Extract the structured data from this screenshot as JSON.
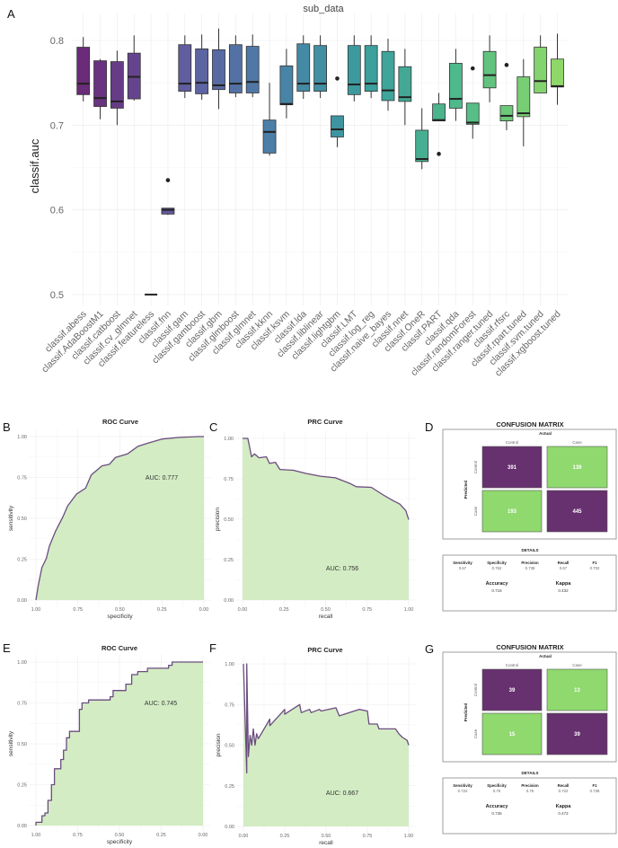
{
  "panel_letters": [
    "A",
    "B",
    "C",
    "D",
    "E",
    "F",
    "G"
  ],
  "colors": {
    "curve_line": "#6b4c80",
    "curve_fill": "#d3ecc4",
    "cm_purple": "#67306f",
    "cm_green": "#8fd96e",
    "box_start": "#6a2b79",
    "box_end": "#8ed86a"
  },
  "chart_data": [
    {
      "type": "box",
      "title": "sub_data",
      "xlabel": "",
      "ylabel": "classif.auc",
      "ylim": [
        0.487,
        0.832
      ],
      "yticks": [
        "0.5",
        "0.6",
        "0.7",
        "0.8"
      ],
      "grid": true,
      "series": [
        {
          "name": "classif.abess",
          "min": 0.728,
          "q1": 0.736,
          "median": 0.749,
          "q3": 0.792,
          "max": 0.804,
          "outliers": []
        },
        {
          "name": "classif.AdaBoostM1",
          "min": 0.707,
          "q1": 0.722,
          "median": 0.732,
          "q3": 0.776,
          "max": 0.778,
          "outliers": []
        },
        {
          "name": "classif.catboost",
          "min": 0.7,
          "q1": 0.72,
          "median": 0.728,
          "q3": 0.775,
          "max": 0.788,
          "outliers": []
        },
        {
          "name": "classif.cv_glmnet",
          "min": 0.729,
          "q1": 0.731,
          "median": 0.757,
          "q3": 0.785,
          "max": 0.806,
          "outliers": []
        },
        {
          "name": "classif.featureless",
          "min": 0.5,
          "q1": 0.5,
          "median": 0.5,
          "q3": 0.5,
          "max": 0.5,
          "outliers": []
        },
        {
          "name": "classif.fnn",
          "min": 0.594,
          "q1": 0.595,
          "median": 0.6,
          "q3": 0.602,
          "max": 0.602,
          "outliers": [
            0.635
          ]
        },
        {
          "name": "classif.gam",
          "min": 0.732,
          "q1": 0.74,
          "median": 0.749,
          "q3": 0.795,
          "max": 0.806,
          "outliers": []
        },
        {
          "name": "classif.gamboost",
          "min": 0.73,
          "q1": 0.737,
          "median": 0.75,
          "q3": 0.79,
          "max": 0.807,
          "outliers": []
        },
        {
          "name": "classif.gbm",
          "min": 0.719,
          "q1": 0.742,
          "median": 0.747,
          "q3": 0.789,
          "max": 0.814,
          "outliers": []
        },
        {
          "name": "classif.glmboost",
          "min": 0.733,
          "q1": 0.738,
          "median": 0.749,
          "q3": 0.795,
          "max": 0.806,
          "outliers": []
        },
        {
          "name": "classif.glmnet",
          "min": 0.733,
          "q1": 0.738,
          "median": 0.751,
          "q3": 0.793,
          "max": 0.807,
          "outliers": []
        },
        {
          "name": "classif.kknn",
          "min": 0.664,
          "q1": 0.667,
          "median": 0.692,
          "q3": 0.706,
          "max": 0.75,
          "outliers": []
        },
        {
          "name": "classif.ksvm",
          "min": 0.708,
          "q1": 0.724,
          "median": 0.725,
          "q3": 0.77,
          "max": 0.79,
          "outliers": []
        },
        {
          "name": "classif.lda",
          "min": 0.731,
          "q1": 0.74,
          "median": 0.749,
          "q3": 0.796,
          "max": 0.806,
          "outliers": []
        },
        {
          "name": "classif.liblinear",
          "min": 0.732,
          "q1": 0.74,
          "median": 0.749,
          "q3": 0.794,
          "max": 0.806,
          "outliers": []
        },
        {
          "name": "classif.lightgbm",
          "min": 0.674,
          "q1": 0.686,
          "median": 0.695,
          "q3": 0.711,
          "max": 0.711,
          "outliers": [
            0.755
          ]
        },
        {
          "name": "classif.LMT",
          "min": 0.728,
          "q1": 0.736,
          "median": 0.748,
          "q3": 0.794,
          "max": 0.806,
          "outliers": []
        },
        {
          "name": "classif.log_reg",
          "min": 0.732,
          "q1": 0.74,
          "median": 0.749,
          "q3": 0.794,
          "max": 0.806,
          "outliers": []
        },
        {
          "name": "classif.naive_bayes",
          "min": 0.717,
          "q1": 0.729,
          "median": 0.741,
          "q3": 0.787,
          "max": 0.802,
          "outliers": []
        },
        {
          "name": "classif.nnet",
          "min": 0.7,
          "q1": 0.728,
          "median": 0.733,
          "q3": 0.769,
          "max": 0.79,
          "outliers": []
        },
        {
          "name": "classif.OneR",
          "min": 0.648,
          "q1": 0.657,
          "median": 0.66,
          "q3": 0.694,
          "max": 0.72,
          "outliers": []
        },
        {
          "name": "classif.PART",
          "min": 0.705,
          "q1": 0.705,
          "median": 0.706,
          "q3": 0.725,
          "max": 0.738,
          "outliers": [
            0.666
          ]
        },
        {
          "name": "classif.qda",
          "min": 0.705,
          "q1": 0.72,
          "median": 0.731,
          "q3": 0.773,
          "max": 0.79,
          "outliers": []
        },
        {
          "name": "classif.randomForest",
          "min": 0.684,
          "q1": 0.701,
          "median": 0.703,
          "q3": 0.726,
          "max": 0.726,
          "outliers": [
            0.767
          ]
        },
        {
          "name": "classif.ranger.tuned",
          "min": 0.727,
          "q1": 0.744,
          "median": 0.759,
          "q3": 0.787,
          "max": 0.806,
          "outliers": []
        },
        {
          "name": "classif.rfsrc",
          "min": 0.694,
          "q1": 0.705,
          "median": 0.711,
          "q3": 0.723,
          "max": 0.723,
          "outliers": [
            0.771
          ]
        },
        {
          "name": "classif.rpart.tuned",
          "min": 0.675,
          "q1": 0.71,
          "median": 0.714,
          "q3": 0.757,
          "max": 0.778,
          "outliers": []
        },
        {
          "name": "classif.svm.tuned",
          "min": 0.738,
          "q1": 0.738,
          "median": 0.752,
          "q3": 0.792,
          "max": 0.806,
          "outliers": []
        },
        {
          "name": "classif.xgboost.tuned",
          "min": 0.724,
          "q1": 0.745,
          "median": 0.746,
          "q3": 0.778,
          "max": 0.808,
          "outliers": []
        }
      ]
    },
    {
      "type": "area",
      "panel": "B",
      "title": "ROC Curve",
      "xlabel": "specificity",
      "ylabel": "sensitivity",
      "xlim": [
        1,
        0
      ],
      "ylim": [
        0,
        1
      ],
      "xticks": [
        "1.00",
        "0.75",
        "0.50",
        "0.25",
        "0.00"
      ],
      "yticks": [
        "0.00",
        "0.25",
        "0.50",
        "0.75",
        "1.00"
      ],
      "annotation": "AUC: 0.777",
      "points": [
        [
          1,
          0
        ],
        [
          0.986,
          0.09
        ],
        [
          0.964,
          0.2
        ],
        [
          0.938,
          0.255
        ],
        [
          0.92,
          0.33
        ],
        [
          0.884,
          0.42
        ],
        [
          0.839,
          0.51
        ],
        [
          0.812,
          0.575
        ],
        [
          0.759,
          0.648
        ],
        [
          0.705,
          0.684
        ],
        [
          0.67,
          0.766
        ],
        [
          0.607,
          0.821
        ],
        [
          0.563,
          0.83
        ],
        [
          0.527,
          0.872
        ],
        [
          0.455,
          0.894
        ],
        [
          0.393,
          0.94
        ],
        [
          0.339,
          0.958
        ],
        [
          0.25,
          0.985
        ],
        [
          0.143,
          0.995
        ],
        [
          0.036,
          1
        ],
        [
          0,
          1
        ]
      ]
    },
    {
      "type": "area",
      "panel": "C",
      "title": "PRC Curve",
      "xlabel": "recall",
      "ylabel": "precision",
      "xlim": [
        0,
        1
      ],
      "ylim": [
        0,
        1
      ],
      "xticks": [
        "0.00",
        "0.25",
        "0.50",
        "0.75",
        "1.00"
      ],
      "yticks": [
        "0.00",
        "0.25",
        "0.50",
        "0.75",
        "1.00"
      ],
      "annotation": "AUC: 0.756",
      "points": [
        [
          0,
          1
        ],
        [
          0.032,
          1
        ],
        [
          0.04,
          0.96
        ],
        [
          0.054,
          0.886
        ],
        [
          0.072,
          0.904
        ],
        [
          0.099,
          0.88
        ],
        [
          0.144,
          0.886
        ],
        [
          0.162,
          0.845
        ],
        [
          0.198,
          0.852
        ],
        [
          0.225,
          0.808
        ],
        [
          0.306,
          0.803
        ],
        [
          0.378,
          0.784
        ],
        [
          0.468,
          0.766
        ],
        [
          0.559,
          0.756
        ],
        [
          0.649,
          0.72
        ],
        [
          0.685,
          0.701
        ],
        [
          0.775,
          0.697
        ],
        [
          0.847,
          0.65
        ],
        [
          0.901,
          0.618
        ],
        [
          0.946,
          0.594
        ],
        [
          0.982,
          0.554
        ],
        [
          1,
          0.498
        ]
      ]
    },
    {
      "type": "area",
      "panel": "E",
      "title": "ROC Curve",
      "xlabel": "specificity",
      "ylabel": "sensitivity",
      "xlim": [
        1,
        0
      ],
      "ylim": [
        0,
        1
      ],
      "xticks": [
        "1.00",
        "0.75",
        "0.50",
        "0.25",
        "0.00"
      ],
      "yticks": [
        "0.00",
        "0.25",
        "0.50",
        "0.75",
        "1.00"
      ],
      "annotation": "AUC: 0.745",
      "step": true,
      "points": [
        [
          1,
          0
        ],
        [
          1,
          0.02
        ],
        [
          0.964,
          0.02
        ],
        [
          0.964,
          0.06
        ],
        [
          0.946,
          0.06
        ],
        [
          0.946,
          0.077
        ],
        [
          0.928,
          0.077
        ],
        [
          0.928,
          0.154
        ],
        [
          0.907,
          0.154
        ],
        [
          0.907,
          0.25
        ],
        [
          0.889,
          0.25
        ],
        [
          0.889,
          0.347
        ],
        [
          0.851,
          0.347
        ],
        [
          0.851,
          0.404
        ],
        [
          0.835,
          0.404
        ],
        [
          0.835,
          0.461
        ],
        [
          0.817,
          0.461
        ],
        [
          0.817,
          0.537
        ],
        [
          0.799,
          0.537
        ],
        [
          0.799,
          0.576
        ],
        [
          0.74,
          0.576
        ],
        [
          0.74,
          0.711
        ],
        [
          0.724,
          0.711
        ],
        [
          0.724,
          0.75
        ],
        [
          0.685,
          0.75
        ],
        [
          0.685,
          0.768
        ],
        [
          0.556,
          0.768
        ],
        [
          0.556,
          0.788
        ],
        [
          0.538,
          0.788
        ],
        [
          0.538,
          0.826
        ],
        [
          0.462,
          0.826
        ],
        [
          0.462,
          0.865
        ],
        [
          0.427,
          0.865
        ],
        [
          0.427,
          0.923
        ],
        [
          0.391,
          0.923
        ],
        [
          0.391,
          0.942
        ],
        [
          0.332,
          0.942
        ],
        [
          0.332,
          0.962
        ],
        [
          0.206,
          0.962
        ],
        [
          0.206,
          0.98
        ],
        [
          0.185,
          0.98
        ],
        [
          0.185,
          1
        ],
        [
          0,
          1
        ]
      ]
    },
    {
      "type": "area",
      "panel": "F",
      "title": "PRC Curve",
      "xlabel": "recall",
      "ylabel": "precision",
      "xlim": [
        0,
        1
      ],
      "ylim": [
        0,
        1
      ],
      "xticks": [
        "0.00",
        "0.25",
        "0.50",
        "0.75",
        "1.00"
      ],
      "yticks": [
        "0.00",
        "0.25",
        "0.50",
        "0.75",
        "1.00"
      ],
      "annotation": "AUC: 0.667",
      "points": [
        [
          0,
          1
        ],
        [
          0.02,
          0.33
        ],
        [
          0.02,
          1
        ],
        [
          0.03,
          0.43
        ],
        [
          0.04,
          0.56
        ],
        [
          0.05,
          0.5
        ],
        [
          0.06,
          0.6
        ],
        [
          0.07,
          0.5
        ],
        [
          0.08,
          0.57
        ],
        [
          0.09,
          0.54
        ],
        [
          0.16,
          0.66
        ],
        [
          0.16,
          0.62
        ],
        [
          0.25,
          0.72
        ],
        [
          0.25,
          0.69
        ],
        [
          0.34,
          0.75
        ],
        [
          0.35,
          0.7
        ],
        [
          0.4,
          0.72
        ],
        [
          0.41,
          0.7
        ],
        [
          0.46,
          0.72
        ],
        [
          0.47,
          0.71
        ],
        [
          0.56,
          0.73
        ],
        [
          0.58,
          0.68
        ],
        [
          0.7,
          0.72
        ],
        [
          0.75,
          0.71
        ],
        [
          0.76,
          0.63
        ],
        [
          0.81,
          0.63
        ],
        [
          0.82,
          0.6
        ],
        [
          0.85,
          0.6
        ],
        [
          0.92,
          0.6
        ],
        [
          0.94,
          0.57
        ],
        [
          0.96,
          0.55
        ],
        [
          0.99,
          0.53
        ],
        [
          1,
          0.5
        ]
      ]
    },
    {
      "type": "table",
      "panel": "D",
      "title": "CONFUSION MATRIX",
      "actual_label": "Actual",
      "predicted_label": "Predicted",
      "classes": [
        "Control",
        "Case"
      ],
      "matrix": [
        [
          "391",
          "139"
        ],
        [
          "193",
          "445"
        ]
      ],
      "details_title": "DETAILS",
      "metrics": [
        {
          "label": "Sensitivity",
          "value": "0.67"
        },
        {
          "label": "Specificity",
          "value": "0.762"
        },
        {
          "label": "Precision",
          "value": "0.738"
        },
        {
          "label": "Recall",
          "value": "0.67"
        },
        {
          "label": "F1",
          "value": "0.702"
        }
      ],
      "summary": [
        {
          "label": "Accuracy",
          "value": "0.716"
        },
        {
          "label": "Kappa",
          "value": "0.432"
        }
      ]
    },
    {
      "type": "table",
      "panel": "G",
      "title": "CONFUSION MATRIX",
      "actual_label": "Actual",
      "predicted_label": "Predicted",
      "classes": [
        "Control",
        "Case"
      ],
      "matrix": [
        [
          "39",
          "13"
        ],
        [
          "15",
          "39"
        ]
      ],
      "details_title": "DETAILS",
      "metrics": [
        {
          "label": "Sensitivity",
          "value": "0.722"
        },
        {
          "label": "Specificity",
          "value": "0.75"
        },
        {
          "label": "Precision",
          "value": "0.75"
        },
        {
          "label": "Recall",
          "value": "0.722"
        },
        {
          "label": "F1",
          "value": "0.736"
        }
      ],
      "summary": [
        {
          "label": "Accuracy",
          "value": "0.736"
        },
        {
          "label": "Kappa",
          "value": "0.472"
        }
      ]
    }
  ]
}
